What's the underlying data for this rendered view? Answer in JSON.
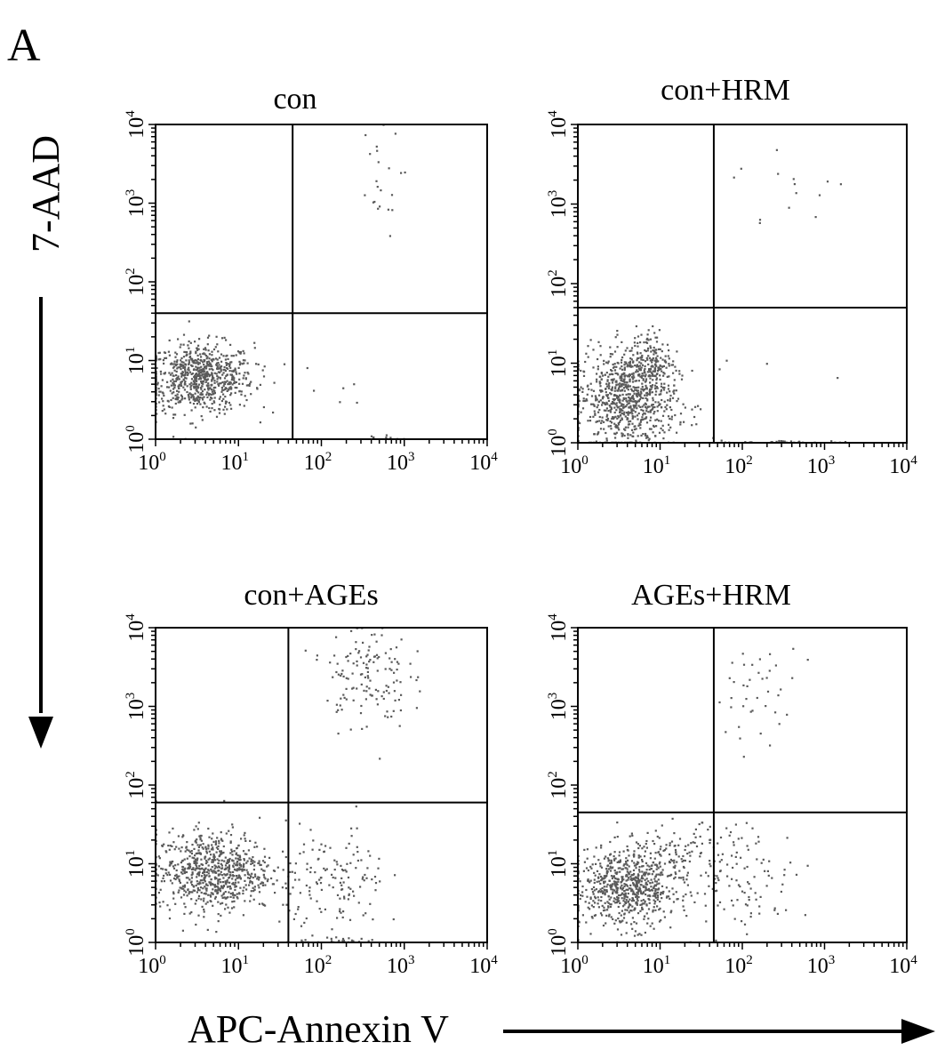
{
  "figure_letter": "A",
  "y_axis_label": "7-AAD",
  "x_axis_label": "APC-Annexin V",
  "chart_data": [
    {
      "type": "scatter",
      "title": "con",
      "x_scale": "log",
      "y_scale": "log",
      "xlim": [
        1,
        10000
      ],
      "ylim": [
        1,
        10000
      ],
      "x_ticks": [
        1,
        10,
        100,
        1000,
        10000
      ],
      "y_ticks": [
        1,
        10,
        100,
        1000,
        10000
      ],
      "tick_base": "10",
      "tick_exponents": [
        "0",
        "1",
        "2",
        "3",
        "4"
      ],
      "quadrant_gates": {
        "x": 45,
        "y": 40
      },
      "populations": [
        {
          "center_x": 3.5,
          "center_y": 6,
          "spread_x_decades": 0.32,
          "spread_y_decades": 0.22,
          "count": 750
        },
        {
          "center_x": 450,
          "center_y": 1800,
          "spread_x_decades": 0.15,
          "spread_y_decades": 0.35,
          "count": 22
        },
        {
          "center_x": 120,
          "center_y": 4,
          "spread_x_decades": 0.2,
          "spread_y_decades": 0.2,
          "count": 6
        },
        {
          "center_x": 500,
          "center_y": 1.05,
          "spread_x_decades": 0.2,
          "spread_y_decades": 0.02,
          "count": 8
        }
      ]
    },
    {
      "type": "scatter",
      "title": "con+HRM",
      "x_scale": "log",
      "y_scale": "log",
      "xlim": [
        1,
        10000
      ],
      "ylim": [
        1,
        10000
      ],
      "x_ticks": [
        1,
        10,
        100,
        1000,
        10000
      ],
      "y_ticks": [
        1,
        10,
        100,
        1000,
        10000
      ],
      "tick_base": "10",
      "tick_exponents": [
        "0",
        "1",
        "2",
        "3",
        "4"
      ],
      "quadrant_gates": {
        "x": 45,
        "y": 50
      },
      "populations": [
        {
          "center_x": 4,
          "center_y": 3.5,
          "spread_x_decades": 0.3,
          "spread_y_decades": 0.3,
          "count": 800
        },
        {
          "center_x": 7,
          "center_y": 11,
          "spread_x_decades": 0.15,
          "spread_y_decades": 0.2,
          "count": 150
        },
        {
          "center_x": 400,
          "center_y": 1500,
          "spread_x_decades": 0.35,
          "spread_y_decades": 0.3,
          "count": 14
        },
        {
          "center_x": 400,
          "center_y": 1.02,
          "spread_x_decades": 0.45,
          "spread_y_decades": 0.01,
          "count": 25
        },
        {
          "center_x": 200,
          "center_y": 8,
          "spread_x_decades": 0.4,
          "spread_y_decades": 0.4,
          "count": 5
        }
      ]
    },
    {
      "type": "scatter",
      "title": "con+AGEs",
      "x_scale": "log",
      "y_scale": "log",
      "xlim": [
        1,
        10000
      ],
      "ylim": [
        1,
        10000
      ],
      "x_ticks": [
        1,
        10,
        100,
        1000,
        10000
      ],
      "y_ticks": [
        1,
        10,
        100,
        1000,
        10000
      ],
      "tick_base": "10",
      "tick_exponents": [
        "0",
        "1",
        "2",
        "3",
        "4"
      ],
      "quadrant_gates": {
        "x": 40,
        "y": 60
      },
      "populations": [
        {
          "center_x": 5,
          "center_y": 8,
          "spread_x_decades": 0.35,
          "spread_y_decades": 0.25,
          "count": 750
        },
        {
          "center_x": 350,
          "center_y": 2500,
          "spread_x_decades": 0.25,
          "spread_y_decades": 0.35,
          "count": 140
        },
        {
          "center_x": 150,
          "center_y": 6,
          "spread_x_decades": 0.3,
          "spread_y_decades": 0.35,
          "count": 140
        },
        {
          "center_x": 200,
          "center_y": 1.03,
          "spread_x_decades": 0.35,
          "spread_y_decades": 0.02,
          "count": 25
        }
      ]
    },
    {
      "type": "scatter",
      "title": "AGEs+HRM",
      "x_scale": "log",
      "y_scale": "log",
      "xlim": [
        1,
        10000
      ],
      "ylim": [
        1,
        10000
      ],
      "x_ticks": [
        1,
        10,
        100,
        1000,
        10000
      ],
      "y_ticks": [
        1,
        10,
        100,
        1000,
        10000
      ],
      "tick_base": "10",
      "tick_exponents": [
        "0",
        "1",
        "2",
        "3",
        "4"
      ],
      "quadrant_gates": {
        "x": 45,
        "y": 45
      },
      "populations": [
        {
          "center_x": 4,
          "center_y": 5,
          "spread_x_decades": 0.3,
          "spread_y_decades": 0.25,
          "count": 700
        },
        {
          "center_x": 20,
          "center_y": 12,
          "spread_x_decades": 0.3,
          "spread_y_decades": 0.2,
          "count": 110
        },
        {
          "center_x": 120,
          "center_y": 7,
          "spread_x_decades": 0.3,
          "spread_y_decades": 0.35,
          "count": 90
        },
        {
          "center_x": 150,
          "center_y": 1500,
          "spread_x_decades": 0.25,
          "spread_y_decades": 0.3,
          "count": 40
        }
      ]
    }
  ]
}
